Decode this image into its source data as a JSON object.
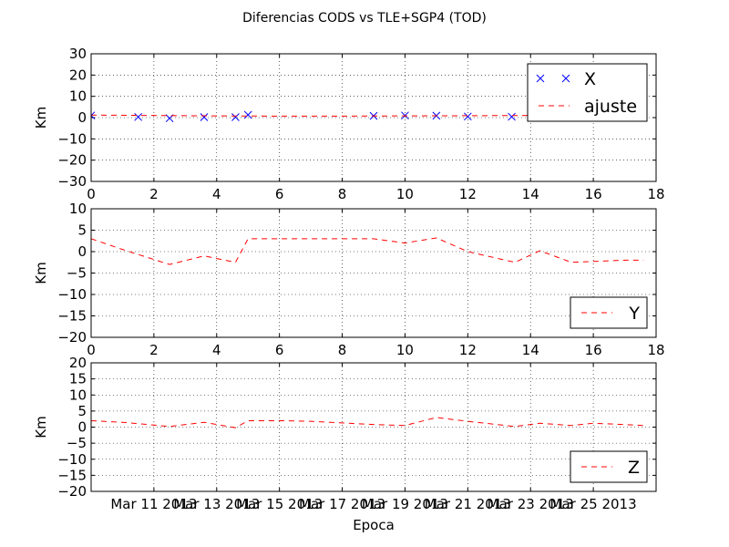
{
  "figure": {
    "title": "Diferencias CODS vs TLE+SGP4 (TOD)"
  },
  "chart_data": [
    {
      "type": "scatter",
      "ylabel": "Km",
      "xlim": [
        0,
        18
      ],
      "ylim": [
        -30,
        30
      ],
      "xticks": [
        "0",
        "2",
        "4",
        "6",
        "8",
        "10",
        "12",
        "14",
        "16",
        "18"
      ],
      "yticks": [
        "30",
        "20",
        "10",
        "0",
        "−10",
        "−20",
        "−30"
      ],
      "grid": true,
      "legend_position": "top-right",
      "colors": {
        "X": "#0000ff",
        "ajuste": "#ff0000"
      },
      "series": [
        {
          "name": "X",
          "style": "markers-x",
          "x": [
            0,
            1.5,
            2.5,
            3.6,
            4.6,
            5.0,
            9.0,
            10.0,
            11.0,
            12.0,
            13.4
          ],
          "y": [
            1.0,
            0.3,
            -0.3,
            0.2,
            0.2,
            1.3,
            0.8,
            1.0,
            0.9,
            0.5,
            0.4
          ]
        },
        {
          "name": "ajuste",
          "style": "dashed-line",
          "x": [
            0,
            2,
            4,
            6,
            8,
            10,
            12,
            14
          ],
          "y": [
            1.2,
            1.0,
            0.8,
            0.7,
            0.7,
            0.8,
            0.9,
            1.0
          ]
        }
      ]
    },
    {
      "type": "line",
      "ylabel": "Km",
      "xlim": [
        0,
        18
      ],
      "ylim": [
        -20,
        10
      ],
      "xticks": [
        "0",
        "2",
        "4",
        "6",
        "8",
        "10",
        "12",
        "14",
        "16",
        "18"
      ],
      "yticks": [
        "10",
        "5",
        "0",
        "−5",
        "−10",
        "−15",
        "−20"
      ],
      "grid": true,
      "legend_position": "bottom-right",
      "colors": {
        "Y": "#ff0000"
      },
      "series": [
        {
          "name": "Y",
          "style": "dashed-line",
          "x": [
            0,
            1,
            2.5,
            3.6,
            4.6,
            5.0,
            6,
            7,
            8,
            9,
            10,
            11,
            12,
            13.5,
            14.3,
            15.3,
            16,
            17,
            17.6
          ],
          "y": [
            3.0,
            0.5,
            -3.0,
            -1.0,
            -2.5,
            3.0,
            3.0,
            3.0,
            3.0,
            3.0,
            2.0,
            3.2,
            0.0,
            -2.5,
            0.2,
            -2.5,
            -2.3,
            -2.0,
            -2.0
          ]
        }
      ]
    },
    {
      "type": "line",
      "ylabel": "Km",
      "xlabel": "Epoca",
      "xlim": [
        0,
        18
      ],
      "ylim": [
        -20,
        20
      ],
      "xticks": [
        "Mar 11 2013",
        "Mar 13 2013",
        "Mar 15 2013",
        "Mar 17 2013",
        "Mar 19 2013",
        "Mar 21 2013",
        "Mar 23 2013",
        "Mar 25 2013"
      ],
      "xtick_values": [
        2,
        4,
        6,
        8,
        10,
        12,
        14,
        16
      ],
      "yticks": [
        "20",
        "15",
        "10",
        "5",
        "0",
        "−5",
        "−10",
        "−15",
        "−20"
      ],
      "grid": true,
      "legend_position": "bottom-right",
      "colors": {
        "Z": "#ff0000"
      },
      "series": [
        {
          "name": "Z",
          "style": "dashed-line",
          "x": [
            0,
            1,
            2.5,
            3.6,
            4.6,
            5.0,
            6,
            7,
            8,
            9,
            10,
            11,
            12,
            13.5,
            14.3,
            15.3,
            16,
            17,
            17.6
          ],
          "y": [
            2.0,
            1.5,
            0.2,
            1.5,
            -0.2,
            2.0,
            2.0,
            1.8,
            1.3,
            0.8,
            0.5,
            3.0,
            1.8,
            0.2,
            1.2,
            0.5,
            1.2,
            0.8,
            0.5
          ]
        }
      ]
    }
  ]
}
